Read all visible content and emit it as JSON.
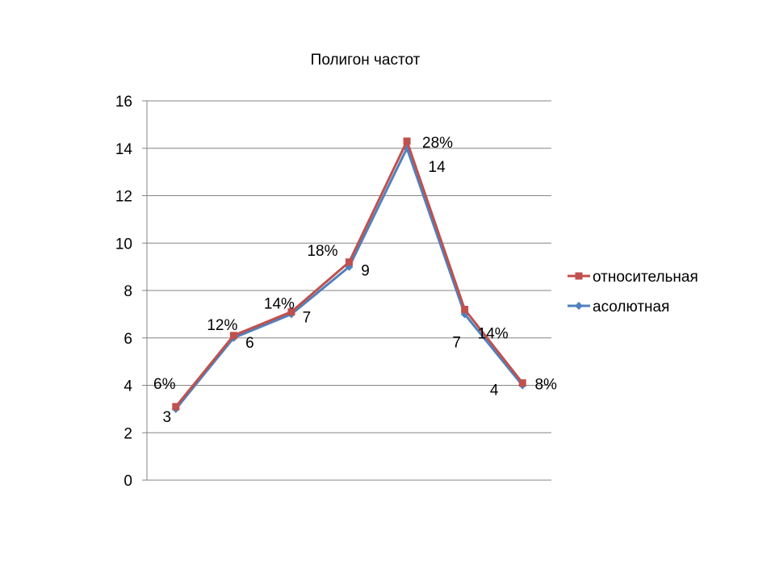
{
  "chart_data": {
    "type": "line",
    "title": "Полигон частот",
    "ylim": [
      0,
      16
    ],
    "yticks": [
      "0",
      "2",
      "4",
      "6",
      "8",
      "10",
      "12",
      "14",
      "16"
    ],
    "grid": true,
    "legend": "right",
    "series": [
      {
        "name": "относительная",
        "color": "#C0504D",
        "marker": "square",
        "values": [
          3.1,
          6.1,
          7.1,
          9.2,
          14.3,
          7.2,
          4.1
        ],
        "labels": [
          "6%",
          "12%",
          "14%",
          "18%",
          "28%",
          "14%",
          "8%"
        ]
      },
      {
        "name": "асолютная",
        "color": "#4F81BD",
        "marker": "diamond",
        "values": [
          3,
          6,
          7,
          9,
          14,
          7,
          4
        ],
        "labels": [
          "3",
          "6",
          "7",
          "9",
          "14",
          "7",
          "4"
        ]
      }
    ]
  }
}
